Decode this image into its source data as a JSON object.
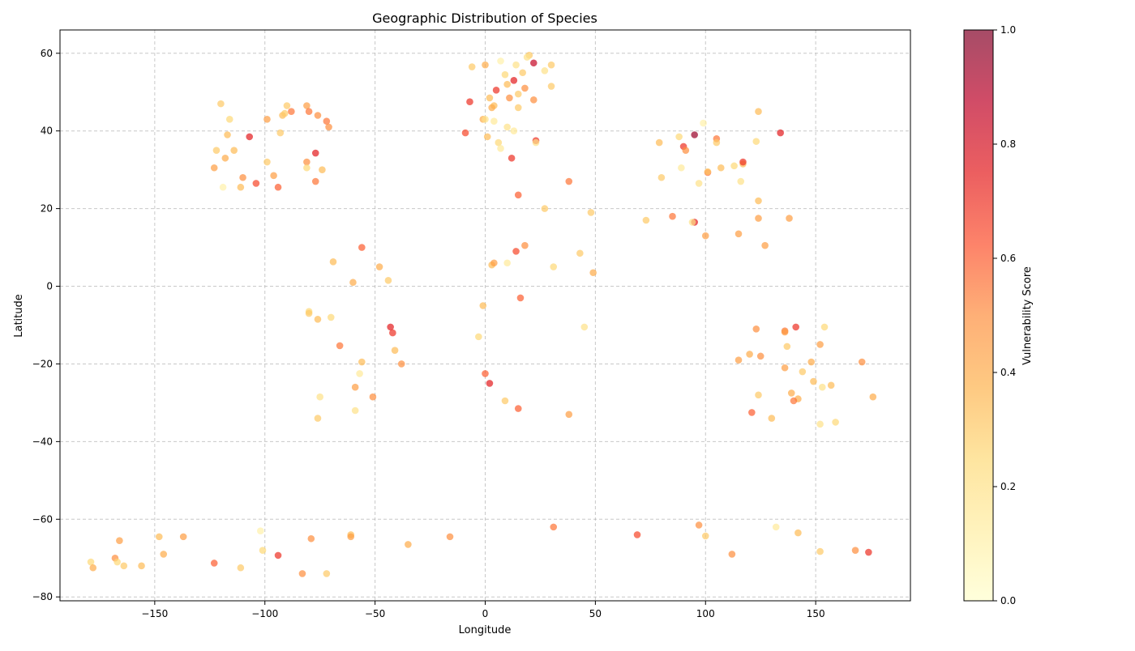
{
  "chart_data": {
    "type": "scatter",
    "title": "Geographic Distribution of Species",
    "xlabel": "Longitude",
    "ylabel": "Latitude",
    "xlim": [
      -193,
      193
    ],
    "ylim": [
      -81,
      66
    ],
    "xticks": [
      -150,
      -100,
      -50,
      0,
      50,
      100,
      150
    ],
    "yticks": [
      -80,
      -60,
      -40,
      -20,
      0,
      20,
      40,
      60
    ],
    "grid": true,
    "colorbar": {
      "label": "Vulnerability Score",
      "range": [
        0.0,
        1.0
      ],
      "ticks": [
        0.0,
        0.2,
        0.4,
        0.6,
        0.8,
        1.0
      ],
      "tick_labels": [
        "0.0",
        "0.2",
        "0.4",
        "0.6",
        "0.8",
        "1.0"
      ],
      "colormap": "YlOrRd",
      "stops": [
        "#ffffcc",
        "#ffeda0",
        "#fed976",
        "#feb24c",
        "#fd8d3c",
        "#fc4e2a",
        "#e31a1c",
        "#bd0026",
        "#800026"
      ]
    },
    "point_alpha": 0.7,
    "points": [
      [
        -120,
        47,
        0.3
      ],
      [
        -117,
        39,
        0.35
      ],
      [
        -116,
        43,
        0.25
      ],
      [
        -122,
        35,
        0.3
      ],
      [
        -118,
        33,
        0.4
      ],
      [
        -114,
        35,
        0.35
      ],
      [
        -123,
        30.5,
        0.45
      ],
      [
        -119,
        25.5,
        0.1
      ],
      [
        -111,
        25.5,
        0.35
      ],
      [
        -110,
        28,
        0.5
      ],
      [
        -107,
        38.5,
        0.75
      ],
      [
        -104,
        26.5,
        0.65
      ],
      [
        -99,
        43,
        0.45
      ],
      [
        -99,
        32,
        0.3
      ],
      [
        -96,
        28.5,
        0.45
      ],
      [
        -94,
        25.5,
        0.6
      ],
      [
        -93,
        39.5,
        0.3
      ],
      [
        -92,
        44,
        0.35
      ],
      [
        -90,
        46.5,
        0.3
      ],
      [
        -88,
        45,
        0.55
      ],
      [
        -81,
        46.5,
        0.45
      ],
      [
        -80,
        45,
        0.55
      ],
      [
        -76,
        44,
        0.5
      ],
      [
        -72,
        42.5,
        0.55
      ],
      [
        -71,
        41,
        0.5
      ],
      [
        -81,
        32,
        0.5
      ],
      [
        -81,
        30.5,
        0.25
      ],
      [
        -77,
        34.3,
        0.75
      ],
      [
        -77,
        27,
        0.55
      ],
      [
        -74,
        30,
        0.35
      ],
      [
        -91,
        44.5,
        0.3
      ],
      [
        -6,
        56.5,
        0.3
      ],
      [
        0,
        57,
        0.4
      ],
      [
        7,
        58,
        0.1
      ],
      [
        14,
        57,
        0.2
      ],
      [
        20,
        59.5,
        0.3
      ],
      [
        22,
        57.5,
        0.85
      ],
      [
        19,
        59,
        0.2
      ],
      [
        27,
        55.5,
        0.2
      ],
      [
        30,
        57,
        0.3
      ],
      [
        30,
        51.5,
        0.3
      ],
      [
        17,
        55,
        0.3
      ],
      [
        9,
        54.5,
        0.25
      ],
      [
        13,
        53,
        0.75
      ],
      [
        5,
        50.5,
        0.7
      ],
      [
        10,
        52,
        0.35
      ],
      [
        18,
        51,
        0.5
      ],
      [
        15,
        49.5,
        0.3
      ],
      [
        11,
        48.5,
        0.5
      ],
      [
        22,
        48,
        0.5
      ],
      [
        -7,
        47.5,
        0.7
      ],
      [
        2,
        48.5,
        0.35
      ],
      [
        4,
        46.5,
        0.35
      ],
      [
        3,
        46,
        0.4
      ],
      [
        15,
        46,
        0.3
      ],
      [
        -1,
        43,
        0.4
      ],
      [
        0,
        43,
        0.2
      ],
      [
        4,
        42.5,
        0.15
      ],
      [
        10,
        41,
        0.2
      ],
      [
        13,
        40,
        0.15
      ],
      [
        -9,
        39.5,
        0.65
      ],
      [
        1,
        38.5,
        0.35
      ],
      [
        6,
        37,
        0.25
      ],
      [
        7,
        35.5,
        0.15
      ],
      [
        23,
        37.5,
        0.7
      ],
      [
        23,
        37,
        0.2
      ],
      [
        12,
        33,
        0.7
      ],
      [
        -48,
        5,
        0.4
      ],
      [
        -56,
        10,
        0.6
      ],
      [
        -60,
        1,
        0.4
      ],
      [
        -69,
        6.3,
        0.35
      ],
      [
        -44,
        1.5,
        0.3
      ],
      [
        -80,
        -6.5,
        0.25
      ],
      [
        -80,
        -7,
        0.3
      ],
      [
        -76,
        -8.5,
        0.35
      ],
      [
        -70,
        -8,
        0.25
      ],
      [
        -43,
        -10.5,
        0.75
      ],
      [
        -42,
        -12,
        0.7
      ],
      [
        -66,
        -15.3,
        0.55
      ],
      [
        -41,
        -16.5,
        0.35
      ],
      [
        -56,
        -19.5,
        0.35
      ],
      [
        -57,
        -22.5,
        0.15
      ],
      [
        -38,
        -20,
        0.5
      ],
      [
        -59,
        -26,
        0.45
      ],
      [
        -51,
        -28.5,
        0.5
      ],
      [
        -75,
        -28.5,
        0.2
      ],
      [
        -59,
        -32,
        0.2
      ],
      [
        -76,
        -34,
        0.3
      ],
      [
        15,
        23.5,
        0.6
      ],
      [
        27,
        20,
        0.3
      ],
      [
        38,
        27,
        0.55
      ],
      [
        48,
        19,
        0.3
      ],
      [
        14,
        9,
        0.65
      ],
      [
        18,
        10.5,
        0.5
      ],
      [
        3,
        5.5,
        0.35
      ],
      [
        4,
        6,
        0.45
      ],
      [
        10,
        6,
        0.15
      ],
      [
        31,
        5,
        0.25
      ],
      [
        43,
        8.5,
        0.3
      ],
      [
        49,
        3.5,
        0.4
      ],
      [
        -1,
        -5,
        0.35
      ],
      [
        16,
        -3,
        0.6
      ],
      [
        -3,
        -13,
        0.25
      ],
      [
        45,
        -10.5,
        0.2
      ],
      [
        0,
        -22.5,
        0.6
      ],
      [
        2,
        -25,
        0.75
      ],
      [
        9,
        -29.5,
        0.3
      ],
      [
        15,
        -31.5,
        0.6
      ],
      [
        38,
        -33,
        0.45
      ],
      [
        79,
        37,
        0.35
      ],
      [
        80,
        28,
        0.3
      ],
      [
        88,
        38.5,
        0.25
      ],
      [
        89,
        30.5,
        0.15
      ],
      [
        90,
        36,
        0.7
      ],
      [
        91,
        35,
        0.5
      ],
      [
        95,
        39,
        0.95
      ],
      [
        99,
        42,
        0.1
      ],
      [
        101,
        29.3,
        0.6
      ],
      [
        101,
        29.5,
        0.3
      ],
      [
        105,
        38,
        0.55
      ],
      [
        105,
        37,
        0.3
      ],
      [
        107,
        30.5,
        0.35
      ],
      [
        113,
        31,
        0.25
      ],
      [
        117,
        31.5,
        0.35
      ],
      [
        117,
        32,
        0.7
      ],
      [
        116,
        27,
        0.2
      ],
      [
        123,
        37.3,
        0.25
      ],
      [
        124,
        45,
        0.35
      ],
      [
        134,
        39.5,
        0.75
      ],
      [
        97,
        26.5,
        0.2
      ],
      [
        124,
        22,
        0.35
      ],
      [
        124,
        17.5,
        0.45
      ],
      [
        138,
        17.5,
        0.45
      ],
      [
        127,
        10.5,
        0.45
      ],
      [
        115,
        13.5,
        0.45
      ],
      [
        100,
        13,
        0.45
      ],
      [
        95,
        16.5,
        0.75
      ],
      [
        94,
        16.5,
        0.2
      ],
      [
        85,
        18,
        0.55
      ],
      [
        73,
        17,
        0.3
      ],
      [
        123,
        -11,
        0.5
      ],
      [
        136,
        -11.5,
        0.55
      ],
      [
        136,
        -11.8,
        0.45
      ],
      [
        141,
        -10.5,
        0.7
      ],
      [
        154,
        -10.5,
        0.25
      ],
      [
        152,
        -15,
        0.45
      ],
      [
        137,
        -15.5,
        0.3
      ],
      [
        136,
        -21,
        0.45
      ],
      [
        144,
        -22,
        0.3
      ],
      [
        148,
        -19.5,
        0.4
      ],
      [
        125,
        -18,
        0.5
      ],
      [
        120,
        -17.5,
        0.4
      ],
      [
        115,
        -19,
        0.45
      ],
      [
        171,
        -19.5,
        0.5
      ],
      [
        149,
        -24.5,
        0.35
      ],
      [
        153,
        -26,
        0.2
      ],
      [
        157,
        -25.5,
        0.35
      ],
      [
        124,
        -28,
        0.3
      ],
      [
        139,
        -27.5,
        0.4
      ],
      [
        142,
        -29,
        0.4
      ],
      [
        140,
        -29.5,
        0.55
      ],
      [
        121,
        -32.5,
        0.6
      ],
      [
        130,
        -34,
        0.35
      ],
      [
        152,
        -35.5,
        0.2
      ],
      [
        159,
        -35,
        0.25
      ],
      [
        176,
        -28.5,
        0.4
      ],
      [
        -179,
        -71,
        0.25
      ],
      [
        -178,
        -72.5,
        0.4
      ],
      [
        -168,
        -70,
        0.5
      ],
      [
        -167,
        -71,
        0.25
      ],
      [
        -166,
        -65.5,
        0.45
      ],
      [
        -164,
        -72,
        0.3
      ],
      [
        -156,
        -72,
        0.35
      ],
      [
        -148,
        -64.5,
        0.35
      ],
      [
        -146,
        -69,
        0.4
      ],
      [
        -137,
        -64.5,
        0.45
      ],
      [
        -123,
        -71.3,
        0.6
      ],
      [
        -111,
        -72.5,
        0.3
      ],
      [
        -102,
        -63,
        0.1
      ],
      [
        -101,
        -68,
        0.25
      ],
      [
        -94,
        -69.3,
        0.7
      ],
      [
        -83,
        -74,
        0.5
      ],
      [
        -79,
        -65,
        0.5
      ],
      [
        -72,
        -74,
        0.3
      ],
      [
        -61,
        -64,
        0.35
      ],
      [
        -61,
        -64.5,
        0.45
      ],
      [
        -35,
        -66.5,
        0.4
      ],
      [
        -16,
        -64.5,
        0.5
      ],
      [
        31,
        -62,
        0.55
      ],
      [
        69,
        -64,
        0.65
      ],
      [
        97,
        -61.5,
        0.5
      ],
      [
        100,
        -64.3,
        0.3
      ],
      [
        112,
        -69,
        0.5
      ],
      [
        132,
        -62,
        0.15
      ],
      [
        142,
        -63.5,
        0.35
      ],
      [
        152,
        -68.3,
        0.3
      ],
      [
        168,
        -68,
        0.5
      ],
      [
        174,
        -68.5,
        0.7
      ]
    ]
  }
}
